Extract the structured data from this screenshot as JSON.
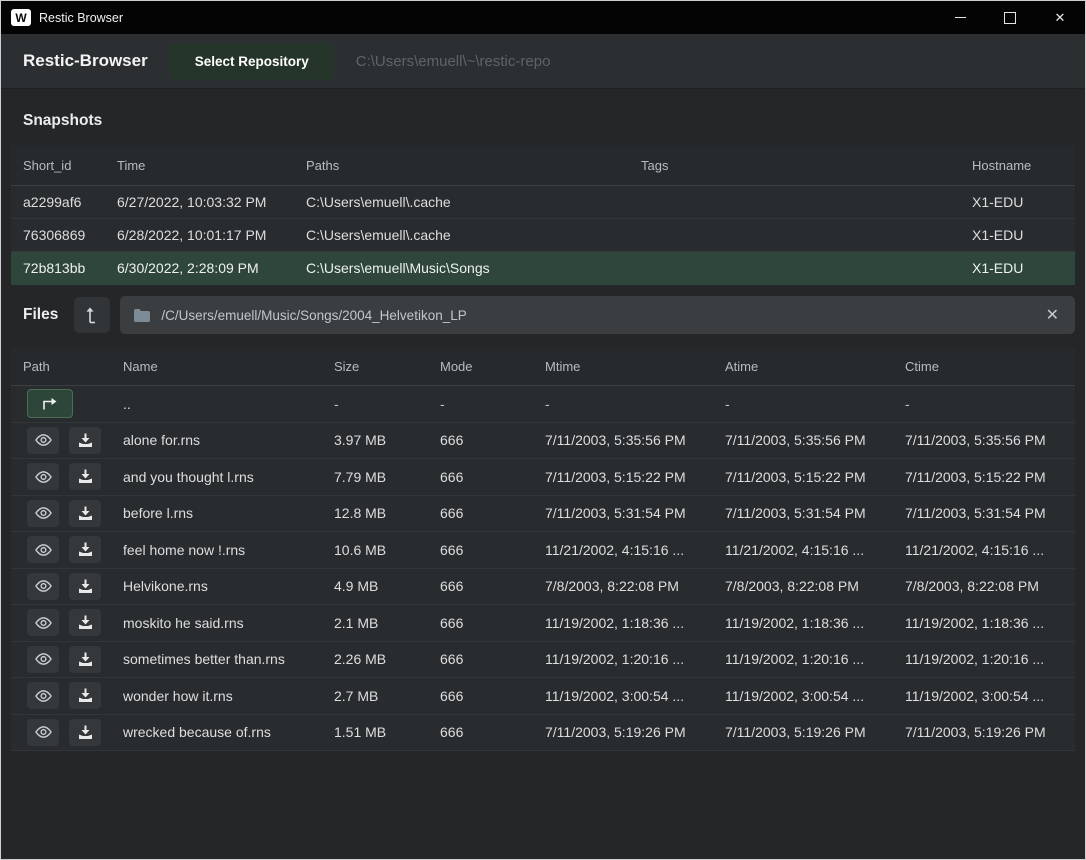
{
  "window": {
    "title": "Restic Browser",
    "app_icon_letter": "W",
    "controls": {
      "minimize": "minimize",
      "maximize": "maximize",
      "close": "✕"
    }
  },
  "header": {
    "app_title": "Restic-Browser",
    "select_repository_label": "Select Repository",
    "repo_path": "C:\\Users\\emuell\\~\\restic-repo"
  },
  "snapshots": {
    "title": "Snapshots",
    "columns": [
      "Short_id",
      "Time",
      "Paths",
      "Tags",
      "Hostname"
    ],
    "rows": [
      {
        "short_id": "a2299af6",
        "time": "6/27/2022, 10:03:32 PM",
        "paths": "C:\\Users\\emuell\\.cache",
        "tags": "",
        "hostname": "X1-EDU",
        "selected": false
      },
      {
        "short_id": "76306869",
        "time": "6/28/2022, 10:01:17 PM",
        "paths": "C:\\Users\\emuell\\.cache",
        "tags": "",
        "hostname": "X1-EDU",
        "selected": false
      },
      {
        "short_id": "72b813bb",
        "time": "6/30/2022, 2:28:09 PM",
        "paths": "C:\\Users\\emuell\\Music\\Songs",
        "tags": "",
        "hostname": "X1-EDU",
        "selected": true
      }
    ]
  },
  "files": {
    "title": "Files",
    "path": "/C/Users/emuell/Music/Songs/2004_Helvetikon_LP",
    "clear_glyph": "✕",
    "columns": [
      "Path",
      "Name",
      "Size",
      "Mode",
      "Mtime",
      "Atime",
      "Ctime"
    ],
    "parent_row": {
      "name": "..",
      "size": "-",
      "mode": "-",
      "mtime": "-",
      "atime": "-",
      "ctime": "-"
    },
    "rows": [
      {
        "name": "alone for.rns",
        "size": "3.97 MB",
        "mode": "666",
        "mtime": "7/11/2003, 5:35:56 PM",
        "atime": "7/11/2003, 5:35:56 PM",
        "ctime": "7/11/2003, 5:35:56 PM"
      },
      {
        "name": "and you thought l.rns",
        "size": "7.79 MB",
        "mode": "666",
        "mtime": "7/11/2003, 5:15:22 PM",
        "atime": "7/11/2003, 5:15:22 PM",
        "ctime": "7/11/2003, 5:15:22 PM"
      },
      {
        "name": "before l.rns",
        "size": "12.8 MB",
        "mode": "666",
        "mtime": "7/11/2003, 5:31:54 PM",
        "atime": "7/11/2003, 5:31:54 PM",
        "ctime": "7/11/2003, 5:31:54 PM"
      },
      {
        "name": "feel home now !.rns",
        "size": "10.6 MB",
        "mode": "666",
        "mtime": "11/21/2002, 4:15:16 ...",
        "atime": "11/21/2002, 4:15:16 ...",
        "ctime": "11/21/2002, 4:15:16 ..."
      },
      {
        "name": "Helvikone.rns",
        "size": "4.9 MB",
        "mode": "666",
        "mtime": "7/8/2003, 8:22:08 PM",
        "atime": "7/8/2003, 8:22:08 PM",
        "ctime": "7/8/2003, 8:22:08 PM"
      },
      {
        "name": "moskito he said.rns",
        "size": "2.1 MB",
        "mode": "666",
        "mtime": "11/19/2002, 1:18:36 ...",
        "atime": "11/19/2002, 1:18:36 ...",
        "ctime": "11/19/2002, 1:18:36 ..."
      },
      {
        "name": "sometimes better than.rns",
        "size": "2.26 MB",
        "mode": "666",
        "mtime": "11/19/2002, 1:20:16 ...",
        "atime": "11/19/2002, 1:20:16 ...",
        "ctime": "11/19/2002, 1:20:16 ..."
      },
      {
        "name": "wonder how it.rns",
        "size": "2.7 MB",
        "mode": "666",
        "mtime": "11/19/2002, 3:00:54 ...",
        "atime": "11/19/2002, 3:00:54 ...",
        "ctime": "11/19/2002, 3:00:54 ..."
      },
      {
        "name": "wrecked because of.rns",
        "size": "1.51 MB",
        "mode": "666",
        "mtime": "7/11/2003, 5:19:26 PM",
        "atime": "7/11/2003, 5:19:26 PM",
        "ctime": "7/11/2003, 5:19:26 PM"
      }
    ]
  },
  "colors": {
    "titlebar_bg": "#040404",
    "header_bg": "#2c2f31",
    "body_bg": "#242628",
    "row_bg": "#292c2e",
    "selected_row_bg": "#2e463b",
    "accent_green_button": "#2c4639",
    "select_repo_button_bg": "#263529",
    "path_bar_bg": "#3a3e41",
    "muted_text": "#5d6468"
  }
}
